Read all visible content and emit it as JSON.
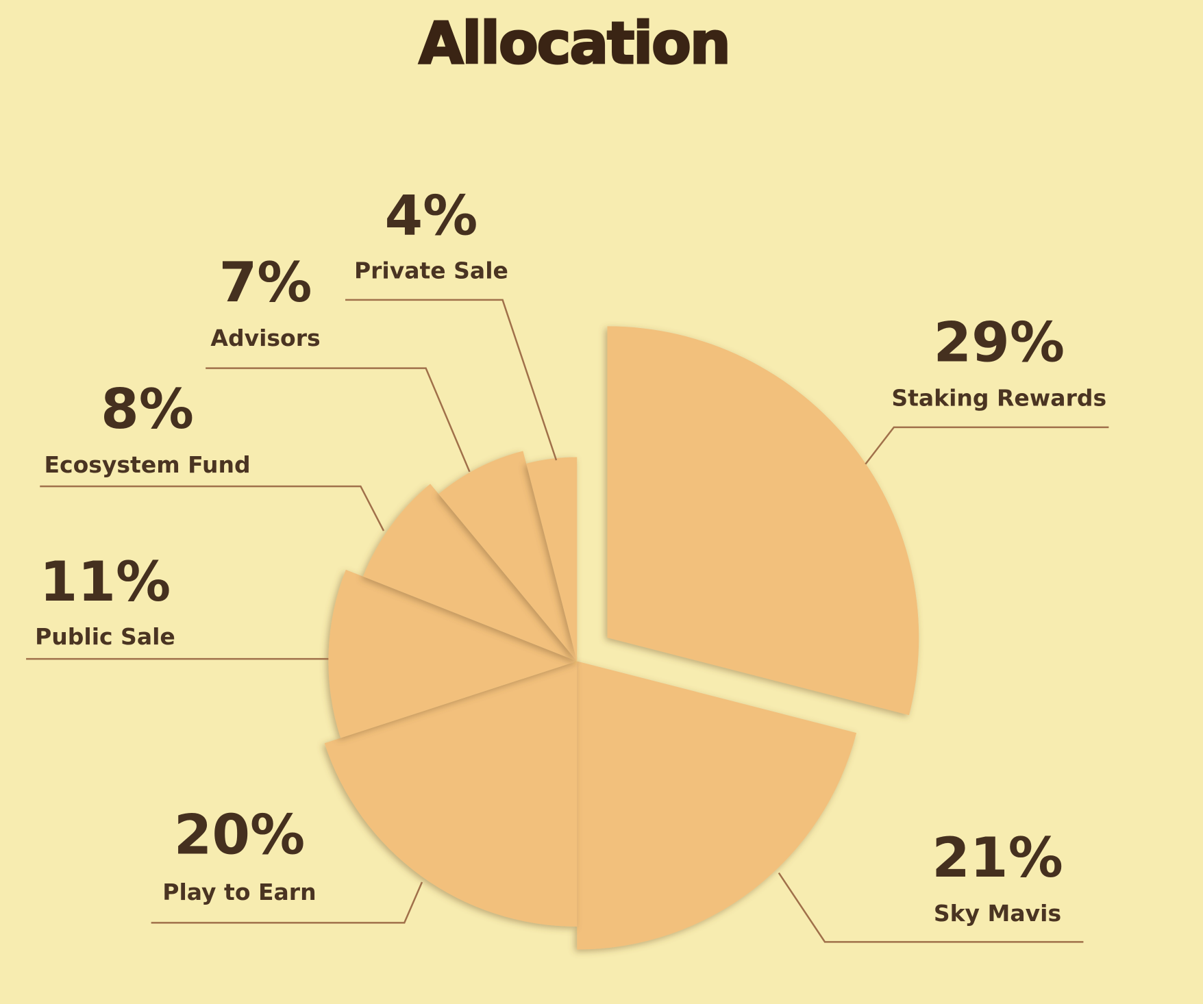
{
  "chart_data": {
    "type": "pie",
    "title": "Allocation",
    "colors": {
      "background": "#f7ecb0",
      "slice": "#f2c07c",
      "text": "#45301f",
      "leader_line": "#a0704a"
    },
    "slices": [
      {
        "label": "Staking Rewards",
        "value": 29,
        "display": "29%",
        "exploded": true
      },
      {
        "label": "Sky Mavis",
        "value": 21,
        "display": "21%"
      },
      {
        "label": "Play to Earn",
        "value": 20,
        "display": "20%"
      },
      {
        "label": "Public Sale",
        "value": 11,
        "display": "11%"
      },
      {
        "label": "Ecosystem Fund",
        "value": 8,
        "display": "8%"
      },
      {
        "label": "Advisors",
        "value": 7,
        "display": "7%"
      },
      {
        "label": "Private Sale",
        "value": 4,
        "display": "4%"
      }
    ]
  }
}
